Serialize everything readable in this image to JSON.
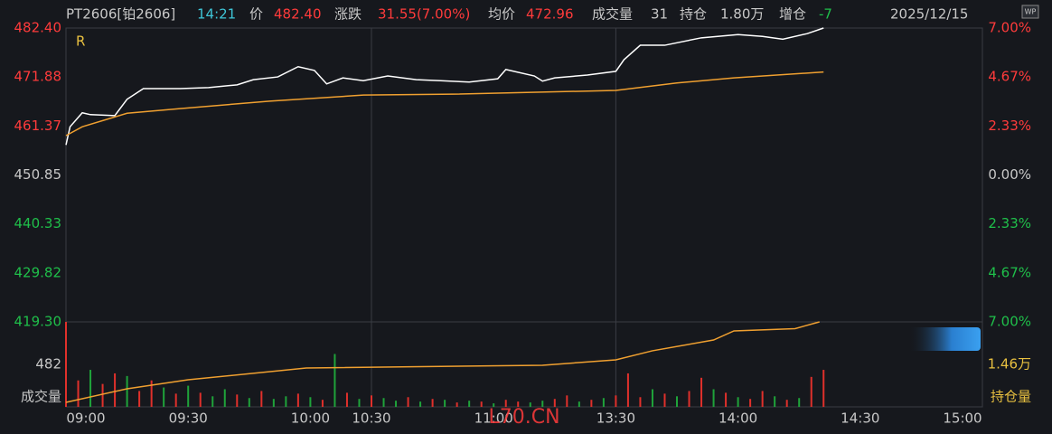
{
  "header": {
    "symbol": "PT2606[铂2606]",
    "time": "14:21",
    "price_label": "价",
    "price": "482.40",
    "change_label": "涨跌",
    "change": "31.55(7.00%)",
    "avg_label": "均价",
    "avg": "472.96",
    "volume_label": "成交量",
    "volume": "31",
    "oi_label": "持仓",
    "oi": "1.80万",
    "oi_change_label": "增仓",
    "oi_change": "-7",
    "date": "2025/12/15",
    "badge": "WP",
    "marker": "R",
    "watermark": "L70.CN"
  },
  "chart_data": [
    {
      "type": "line",
      "xlim": [
        0,
        225
      ],
      "xticks": [
        {
          "value": 0,
          "label": "09:00"
        },
        {
          "value": 30,
          "label": "09:30"
        },
        {
          "value": 60,
          "label": "10:00"
        },
        {
          "value": 75,
          "label": "10:30"
        },
        {
          "value": 105,
          "label": "11:00"
        },
        {
          "value": 135,
          "label": "13:30"
        },
        {
          "value": 165,
          "label": "14:00"
        },
        {
          "value": 195,
          "label": "14:30"
        },
        {
          "value": 225,
          "label": "15:00"
        }
      ],
      "xgrid": [
        75,
        135
      ],
      "ylim": [
        419.3,
        482.4
      ],
      "yticks": [
        {
          "value": 482.4,
          "label": "482.40"
        },
        471.88,
        461.37,
        450.85,
        440.33,
        429.82,
        {
          "value": 419.3,
          "label": "419.30"
        }
      ],
      "y2lim": [
        -7,
        7
      ],
      "y2ticks": [
        {
          "value": 7,
          "label": "7.00%"
        },
        {
          "value": 4.67,
          "label": "4.67%"
        },
        {
          "value": 2.33,
          "label": "2.33%"
        },
        {
          "value": 0,
          "label": "0.00%"
        },
        {
          "value": -2.33,
          "label": "2.33%"
        },
        {
          "value": -4.67,
          "label": "4.67%"
        },
        {
          "value": -7,
          "label": "7.00%"
        }
      ],
      "series": [
        {
          "color": "#ffffff",
          "x": [
            0,
            1,
            4,
            6,
            12,
            15,
            19,
            24,
            28,
            35,
            42,
            46,
            52,
            57,
            61,
            64,
            68,
            73,
            79,
            86,
            92,
            99,
            106,
            108,
            115,
            117,
            120,
            128,
            135,
            137,
            141,
            147,
            156,
            165,
            171,
            176,
            182,
            186
          ],
          "values": [
            457.3,
            461.2,
            464.2,
            463.8,
            463.6,
            467.1,
            469.4,
            469.4,
            469.4,
            469.6,
            470.2,
            471.3,
            471.9,
            474.1,
            473.3,
            470.4,
            471.7,
            471.1,
            472.1,
            471.3,
            471.1,
            470.8,
            471.5,
            473.5,
            472.1,
            471.0,
            471.7,
            472.3,
            473.1,
            475.6,
            478.7,
            478.7,
            480.3,
            481.0,
            480.6,
            480.0,
            481.2,
            482.4
          ]
        },
        {
          "color": "#f0a030",
          "x": [
            0,
            4,
            15,
            28,
            50,
            73,
            95,
            135,
            150,
            164,
            186
          ],
          "values": [
            459.3,
            461.2,
            464.1,
            465.1,
            466.7,
            468.0,
            468.2,
            469.0,
            470.6,
            471.7,
            472.96
          ]
        }
      ]
    },
    {
      "type": "bar",
      "ylabel": "成交量",
      "y2label": "持仓量",
      "ylim": [
        0,
        964
      ],
      "yticks": [
        482
      ],
      "y2lim": [
        1.12,
        1.8
      ],
      "y2ticks": [
        {
          "value": 1.46,
          "label": "1.46万"
        }
      ],
      "up_color": "#e0302b",
      "down_color": "#1fa33a",
      "x": [
        0,
        3,
        6,
        9,
        12,
        15,
        18,
        21,
        24,
        27,
        30,
        33,
        36,
        39,
        42,
        45,
        48,
        51,
        54,
        57,
        60,
        63,
        66,
        69,
        72,
        75,
        78,
        81,
        84,
        87,
        90,
        93,
        96,
        99,
        102,
        105,
        108,
        111,
        114,
        117,
        120,
        123,
        126,
        129,
        132,
        135,
        138,
        141,
        144,
        147,
        150,
        153,
        156,
        159,
        162,
        165,
        168,
        171,
        174,
        177,
        180,
        183,
        186
      ],
      "values": [
        964,
        300,
        420,
        260,
        380,
        350,
        180,
        300,
        220,
        150,
        240,
        160,
        120,
        200,
        140,
        100,
        180,
        90,
        120,
        150,
        110,
        80,
        600,
        160,
        90,
        130,
        100,
        70,
        110,
        60,
        90,
        80,
        50,
        70,
        60,
        40,
        80,
        60,
        50,
        70,
        90,
        130,
        60,
        80,
        100,
        130,
        380,
        110,
        200,
        150,
        120,
        180,
        330,
        200,
        160,
        110,
        90,
        180,
        120,
        80,
        100,
        340,
        420
      ],
      "rising": [
        true,
        true,
        false,
        true,
        true,
        false,
        true,
        true,
        false,
        true,
        false,
        true,
        false,
        false,
        true,
        false,
        true,
        false,
        false,
        true,
        false,
        true,
        false,
        true,
        false,
        true,
        false,
        false,
        true,
        false,
        true,
        false,
        true,
        false,
        true,
        false,
        true,
        true,
        false,
        false,
        true,
        true,
        false,
        true,
        false,
        true,
        true,
        true,
        false,
        true,
        false,
        true,
        true,
        false,
        true,
        false,
        true,
        true,
        false,
        true,
        false,
        true,
        true
      ],
      "series": [
        {
          "color": "#f0a030",
          "axis": "y2",
          "x": [
            0,
            15,
            30,
            59,
            117,
            135,
            144,
            159,
            164,
            179,
            185
          ],
          "values": [
            1.156,
            1.265,
            1.337,
            1.431,
            1.453,
            1.496,
            1.569,
            1.655,
            1.728,
            1.746,
            1.8
          ]
        }
      ]
    }
  ]
}
